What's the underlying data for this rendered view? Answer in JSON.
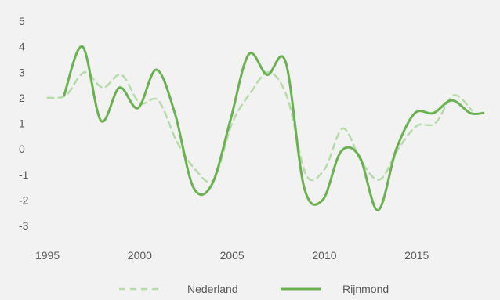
{
  "chart_data": {
    "type": "line",
    "title": "",
    "xlabel": "",
    "ylabel": "",
    "xlim": [
      1994,
      2019
    ],
    "ylim": [
      -3,
      5
    ],
    "x_ticks": [
      1995,
      2000,
      2005,
      2010,
      2015
    ],
    "y_ticks": [
      5,
      4,
      3,
      2,
      1,
      0,
      -1,
      -2,
      -3
    ],
    "grid": false,
    "legend": "bottom",
    "series": [
      {
        "name": "Nederland",
        "color": "#b5dba8",
        "style": "dashed",
        "x": [
          1995,
          1996,
          1997,
          1998,
          1999,
          2000,
          2001,
          2002,
          2003,
          2004,
          2005,
          2006,
          2007,
          2008,
          2009,
          2010,
          2011,
          2012,
          2013,
          2014,
          2015,
          2016,
          2017,
          2018
        ],
        "y": [
          2.0,
          2.1,
          3.0,
          2.4,
          2.9,
          1.8,
          1.9,
          0.3,
          -0.8,
          -1.2,
          1.0,
          2.2,
          3.0,
          2.0,
          -1.0,
          -0.8,
          0.8,
          -0.5,
          -1.2,
          0.0,
          0.9,
          1.0,
          2.1,
          1.5
        ]
      },
      {
        "name": "Rijnmond",
        "color": "#6ab150",
        "style": "solid",
        "x": [
          1995.9,
          1996.9,
          1997.9,
          1998.9,
          1999.9,
          2000.9,
          2001.9,
          2002.9,
          2003.9,
          2004.9,
          2005.9,
          2006.9,
          2007.9,
          2008.9,
          2009.9,
          2010.9,
          2011.9,
          2012.9,
          2013.9,
          2014.9,
          2015.9,
          2016.9,
          2017.9,
          2018.6
        ],
        "y": [
          2.1,
          4.0,
          1.1,
          2.4,
          1.6,
          3.1,
          1.4,
          -1.5,
          -1.4,
          1.1,
          3.7,
          2.9,
          3.4,
          -1.5,
          -2.0,
          -0.1,
          -0.3,
          -2.4,
          0.0,
          1.4,
          1.4,
          1.9,
          1.4,
          1.4
        ]
      }
    ]
  }
}
